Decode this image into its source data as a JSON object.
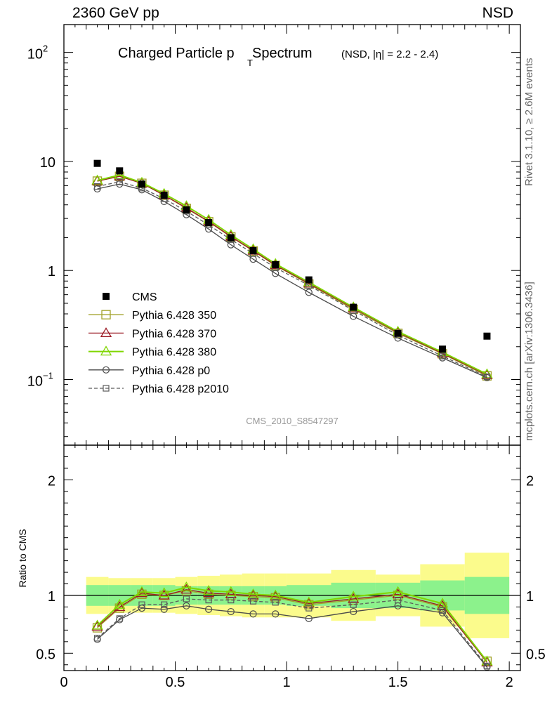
{
  "header": {
    "left": "2360 GeV pp",
    "right": "NSD"
  },
  "side_labels": {
    "rivet": "Rivet 3.1.10, ≥ 2.6M events",
    "mcplots": "mcplots.cern.ch [arXiv:1306.3436]"
  },
  "watermark": "CMS_2010_S8547297",
  "chart_data": {
    "type": "line",
    "title": {
      "main": "Charged Particle p",
      "sub": "T",
      "after": " Spectrum",
      "small": "(NSD, |η| = 2.2 - 2.4)"
    },
    "colors": {
      "CMS": "#000000",
      "Pythia 6.428 350": "#a2a22a",
      "Pythia 6.428 370": "#9b1b25",
      "Pythia 6.428 380": "#7fd600",
      "Pythia 6.428 p0": "#4a4a4a",
      "Pythia 6.428 p2010": "#5a5a5a",
      "band_inner": "#8cf28c",
      "band_outer": "#fbfb8c"
    },
    "main_panel": {
      "yscale": "log",
      "ylim": [
        0.025,
        180
      ],
      "xlim": [
        0,
        2.05
      ],
      "ytick_labels": [
        "10",
        "1"
      ],
      "ytick_pow": {
        "base": "10",
        "exp_top": "2",
        "exp_bottom": "−1"
      },
      "series": [
        {
          "name": "CMS",
          "marker": "filled-square",
          "x": [
            0.15,
            0.25,
            0.35,
            0.45,
            0.55,
            0.65,
            0.75,
            0.85,
            0.95,
            1.1,
            1.3,
            1.5,
            1.7,
            1.9
          ],
          "y": [
            9.6,
            8.2,
            6.2,
            4.9,
            3.6,
            2.75,
            2.0,
            1.52,
            1.13,
            0.82,
            0.46,
            0.265,
            0.19,
            0.25
          ]
        },
        {
          "name": "Pythia 6.428 350",
          "marker": "open-square",
          "dash": false,
          "x": [
            0.15,
            0.25,
            0.35,
            0.45,
            0.55,
            0.65,
            0.75,
            0.85,
            0.95,
            1.1,
            1.3,
            1.5,
            1.7,
            1.9
          ],
          "y": [
            6.6,
            7.3,
            6.3,
            4.9,
            3.7,
            2.8,
            2.03,
            1.51,
            1.11,
            0.75,
            0.44,
            0.265,
            0.172,
            0.108
          ]
        },
        {
          "name": "Pythia 6.428 370",
          "marker": "open-triangle",
          "dash": false,
          "x": [
            0.15,
            0.25,
            0.35,
            0.45,
            0.55,
            0.65,
            0.75,
            0.85,
            0.95,
            1.1,
            1.3,
            1.5,
            1.7,
            1.9
          ],
          "y": [
            6.6,
            7.3,
            6.3,
            4.9,
            3.75,
            2.82,
            2.05,
            1.52,
            1.12,
            0.76,
            0.45,
            0.27,
            0.174,
            0.11
          ]
        },
        {
          "name": "Pythia 6.428 380",
          "marker": "open-triangle",
          "dash": false,
          "x": [
            0.15,
            0.25,
            0.35,
            0.45,
            0.55,
            0.65,
            0.75,
            0.85,
            0.95,
            1.1,
            1.3,
            1.5,
            1.7,
            1.9
          ],
          "y": [
            6.7,
            7.5,
            6.4,
            5.05,
            3.9,
            2.92,
            2.12,
            1.57,
            1.15,
            0.78,
            0.46,
            0.275,
            0.178,
            0.112
          ]
        },
        {
          "name": "Pythia 6.428 p0",
          "marker": "open-circle",
          "dash": false,
          "x": [
            0.15,
            0.25,
            0.35,
            0.45,
            0.55,
            0.65,
            0.75,
            0.85,
            0.95,
            1.1,
            1.3,
            1.5,
            1.7,
            1.9
          ],
          "y": [
            5.6,
            6.2,
            5.5,
            4.3,
            3.25,
            2.4,
            1.72,
            1.27,
            0.94,
            0.63,
            0.38,
            0.24,
            0.158,
            0.104
          ]
        },
        {
          "name": "Pythia 6.428 p2010",
          "marker": "open-square-small",
          "dash": true,
          "x": [
            0.15,
            0.25,
            0.35,
            0.45,
            0.55,
            0.65,
            0.75,
            0.85,
            0.95,
            1.1,
            1.3,
            1.5,
            1.7,
            1.9
          ],
          "y": [
            5.9,
            6.5,
            5.7,
            4.55,
            3.5,
            2.62,
            1.92,
            1.43,
            1.06,
            0.73,
            0.43,
            0.255,
            0.164,
            0.106
          ]
        }
      ]
    },
    "ratio_panel": {
      "ylabel": "Ratio to CMS",
      "ylim": [
        0.35,
        2.3
      ],
      "xlim": [
        0,
        2.05
      ],
      "ytick_labels": [
        "2",
        "1",
        "0.5"
      ],
      "xtick_labels": [
        "0",
        "0.5",
        "1",
        "1.5",
        "2"
      ],
      "band_edges": [
        0.1,
        0.2,
        0.3,
        0.4,
        0.5,
        0.6,
        0.7,
        0.8,
        0.9,
        1.0,
        1.2,
        1.4,
        1.6,
        1.8,
        2.0
      ],
      "band_inner": [
        [
          0.91,
          1.09
        ],
        [
          0.91,
          1.09
        ],
        [
          0.91,
          1.09
        ],
        [
          0.91,
          1.09
        ],
        [
          0.92,
          1.08
        ],
        [
          0.92,
          1.08
        ],
        [
          0.92,
          1.08
        ],
        [
          0.92,
          1.08
        ],
        [
          0.92,
          1.08
        ],
        [
          0.91,
          1.09
        ],
        [
          0.89,
          1.11
        ],
        [
          0.89,
          1.11
        ],
        [
          0.87,
          1.13
        ],
        [
          0.84,
          1.16
        ]
      ],
      "band_outer": [
        [
          0.84,
          1.16
        ],
        [
          0.85,
          1.15
        ],
        [
          0.85,
          1.15
        ],
        [
          0.85,
          1.15
        ],
        [
          0.84,
          1.16
        ],
        [
          0.83,
          1.17
        ],
        [
          0.82,
          1.18
        ],
        [
          0.81,
          1.19
        ],
        [
          0.81,
          1.19
        ],
        [
          0.81,
          1.19
        ],
        [
          0.78,
          1.22
        ],
        [
          0.82,
          1.18
        ],
        [
          0.73,
          1.27
        ],
        [
          0.63,
          1.37
        ]
      ],
      "series": [
        {
          "name": "Pythia 6.428 350",
          "y": [
            0.72,
            0.89,
            1.01,
            1.0,
            1.04,
            1.01,
            1.0,
            0.99,
            0.98,
            0.92,
            0.96,
            1.0,
            0.9,
            0.43
          ]
        },
        {
          "name": "Pythia 6.428 370",
          "y": [
            0.73,
            0.9,
            1.02,
            1.0,
            1.05,
            1.02,
            1.01,
            1.0,
            0.99,
            0.93,
            0.97,
            1.01,
            0.91,
            0.42
          ]
        },
        {
          "name": "Pythia 6.428 380",
          "y": [
            0.74,
            0.92,
            1.03,
            1.02,
            1.07,
            1.04,
            1.03,
            1.01,
            1.0,
            0.94,
            0.99,
            1.03,
            0.93,
            0.43
          ]
        },
        {
          "name": "Pythia 6.428 p0",
          "y": [
            0.62,
            0.79,
            0.89,
            0.88,
            0.91,
            0.88,
            0.86,
            0.84,
            0.84,
            0.8,
            0.86,
            0.91,
            0.85,
            0.38
          ]
        },
        {
          "name": "Pythia 6.428 p2010",
          "y": [
            0.63,
            0.8,
            0.92,
            0.92,
            0.97,
            0.96,
            0.96,
            0.95,
            0.94,
            0.89,
            0.92,
            0.96,
            0.87,
            0.39
          ]
        }
      ]
    },
    "legend": {
      "placement": "lower-left",
      "entries": [
        "CMS",
        "Pythia 6.428 350",
        "Pythia 6.428 370",
        "Pythia 6.428 380",
        "Pythia 6.428 p0",
        "Pythia 6.428 p2010"
      ]
    }
  }
}
